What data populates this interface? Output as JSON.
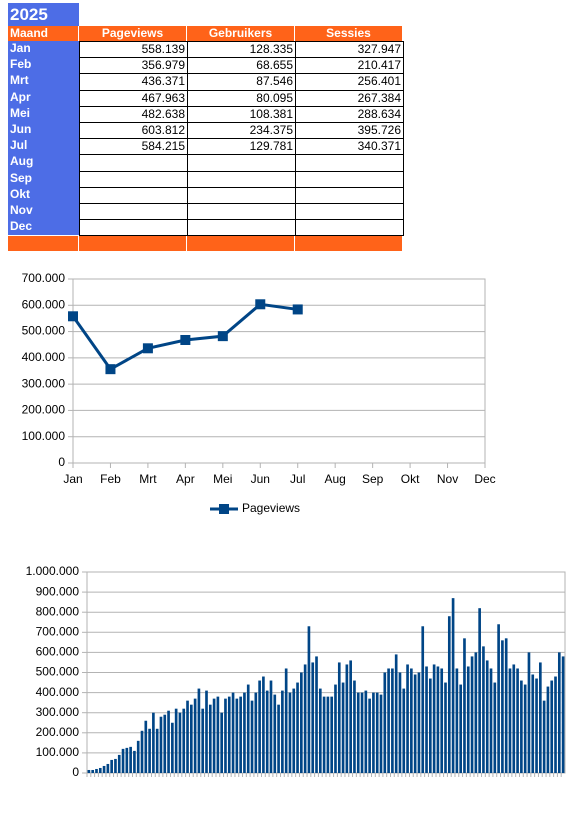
{
  "table": {
    "title": "2025",
    "header": [
      "Maand",
      "Pageviews",
      "Gebruikers",
      "Sessies"
    ],
    "rows": [
      [
        "Jan",
        "558.139",
        "128.335",
        "327.947"
      ],
      [
        "Feb",
        "356.979",
        "68.655",
        "210.417"
      ],
      [
        "Mrt",
        "436.371",
        "87.546",
        "256.401"
      ],
      [
        "Apr",
        "467.963",
        "80.095",
        "267.384"
      ],
      [
        "Mei",
        "482.638",
        "108.381",
        "288.634"
      ],
      [
        "Jun",
        "603.812",
        "234.375",
        "395.726"
      ],
      [
        "Jul",
        "584.215",
        "129.781",
        "340.371"
      ],
      [
        "Aug"
      ],
      [
        "Sep"
      ],
      [
        "Okt"
      ],
      [
        "Nov"
      ],
      [
        "Dec"
      ]
    ]
  },
  "chart_data": [
    {
      "type": "line",
      "categories": [
        "Jan",
        "Feb",
        "Mrt",
        "Apr",
        "Mei",
        "Jun",
        "Jul",
        "Aug",
        "Sep",
        "Okt",
        "Nov",
        "Dec"
      ],
      "series": [
        {
          "name": "Pageviews",
          "color": "#004586",
          "values": [
            558139,
            356979,
            436371,
            467963,
            482638,
            603812,
            584215,
            null,
            null,
            null,
            null,
            null
          ]
        }
      ],
      "ylim": [
        0,
        700000
      ],
      "yticks": [
        0,
        {
          "value": 100000,
          "label": "100.000"
        },
        {
          "value": 200000,
          "label": "200.000"
        },
        {
          "value": 300000,
          "label": "300.000"
        },
        {
          "value": 400000,
          "label": "400.000"
        },
        {
          "value": 500000,
          "label": "500.000"
        },
        {
          "value": 600000,
          "label": "600.000"
        },
        {
          "value": 700000,
          "label": "700.000"
        }
      ],
      "grid": true,
      "legend": "bottom"
    },
    {
      "type": "bar",
      "color": "#004586",
      "values": [
        15000,
        15000,
        20000,
        25000,
        35000,
        45000,
        65000,
        70000,
        90000,
        120000,
        125000,
        130000,
        110000,
        160000,
        210000,
        260000,
        220000,
        300000,
        220000,
        280000,
        290000,
        310000,
        250000,
        320000,
        300000,
        320000,
        360000,
        340000,
        370000,
        420000,
        320000,
        410000,
        340000,
        370000,
        380000,
        300000,
        370000,
        380000,
        400000,
        370000,
        380000,
        400000,
        440000,
        360000,
        400000,
        460000,
        480000,
        410000,
        460000,
        390000,
        340000,
        410000,
        520000,
        400000,
        420000,
        450000,
        500000,
        540000,
        730000,
        550000,
        580000,
        420000,
        380000,
        380000,
        380000,
        440000,
        550000,
        450000,
        540000,
        560000,
        460000,
        400000,
        400000,
        410000,
        370000,
        400000,
        400000,
        390000,
        500000,
        520000,
        520000,
        590000,
        500000,
        420000,
        540000,
        520000,
        490000,
        500000,
        730000,
        530000,
        470000,
        540000,
        530000,
        520000,
        450000,
        780000,
        870000,
        520000,
        440000,
        670000,
        530000,
        580000,
        600000,
        820000,
        630000,
        560000,
        520000,
        450000,
        740000,
        660000,
        670000,
        520000,
        540000,
        520000,
        460000,
        440000,
        600000,
        490000,
        470000,
        550000,
        360000,
        430000,
        460000,
        480000,
        600000,
        580000
      ],
      "ylim": [
        0,
        1000000
      ],
      "yticks": [
        0,
        {
          "value": 100000,
          "label": "100.000"
        },
        {
          "value": 200000,
          "label": "200.000"
        },
        {
          "value": 300000,
          "label": "300.000"
        },
        {
          "value": 400000,
          "label": "400.000"
        },
        {
          "value": 500000,
          "label": "500.000"
        },
        {
          "value": 600000,
          "label": "600.000"
        },
        {
          "value": 700000,
          "label": "700.000"
        },
        {
          "value": 800000,
          "label": "800.000"
        },
        {
          "value": 900000,
          "label": "900.000"
        },
        {
          "value": 1000000,
          "label": "1.000.000"
        }
      ],
      "grid": true
    }
  ]
}
